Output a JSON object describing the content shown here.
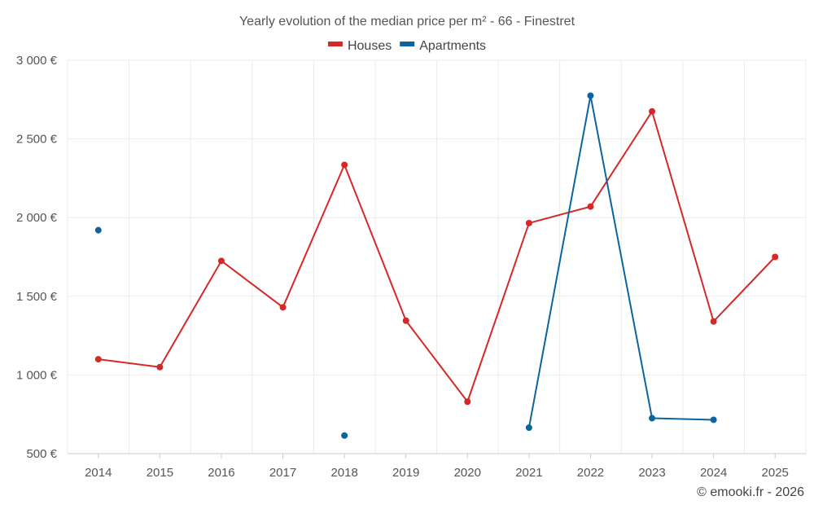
{
  "chart_data": {
    "type": "line",
    "title": "Yearly evolution of the median price per m² - 66 - Finestret",
    "categories": [
      "2014",
      "2015",
      "2016",
      "2017",
      "2018",
      "2019",
      "2020",
      "2021",
      "2022",
      "2023",
      "2024",
      "2025"
    ],
    "series": [
      {
        "name": "Houses",
        "color": "#d62828",
        "values": [
          1100,
          1050,
          1725,
          1430,
          2335,
          1345,
          830,
          1965,
          2070,
          2675,
          1340,
          1750
        ]
      },
      {
        "name": "Apartments",
        "color": "#0b64a0",
        "values": [
          1920,
          null,
          null,
          null,
          615,
          null,
          null,
          665,
          2775,
          725,
          715,
          null
        ]
      }
    ],
    "ylim": [
      500,
      3000
    ],
    "yticks": [
      500,
      1000,
      1500,
      2000,
      2500,
      3000
    ],
    "ytick_labels": [
      "500 €",
      "1 000 €",
      "1 500 €",
      "2 000 €",
      "2 500 €",
      "3 000 €"
    ],
    "xlabel": "",
    "ylabel": "",
    "grid": true,
    "legend_position": "top-center"
  },
  "credit": "© emooki.fr - 2026"
}
